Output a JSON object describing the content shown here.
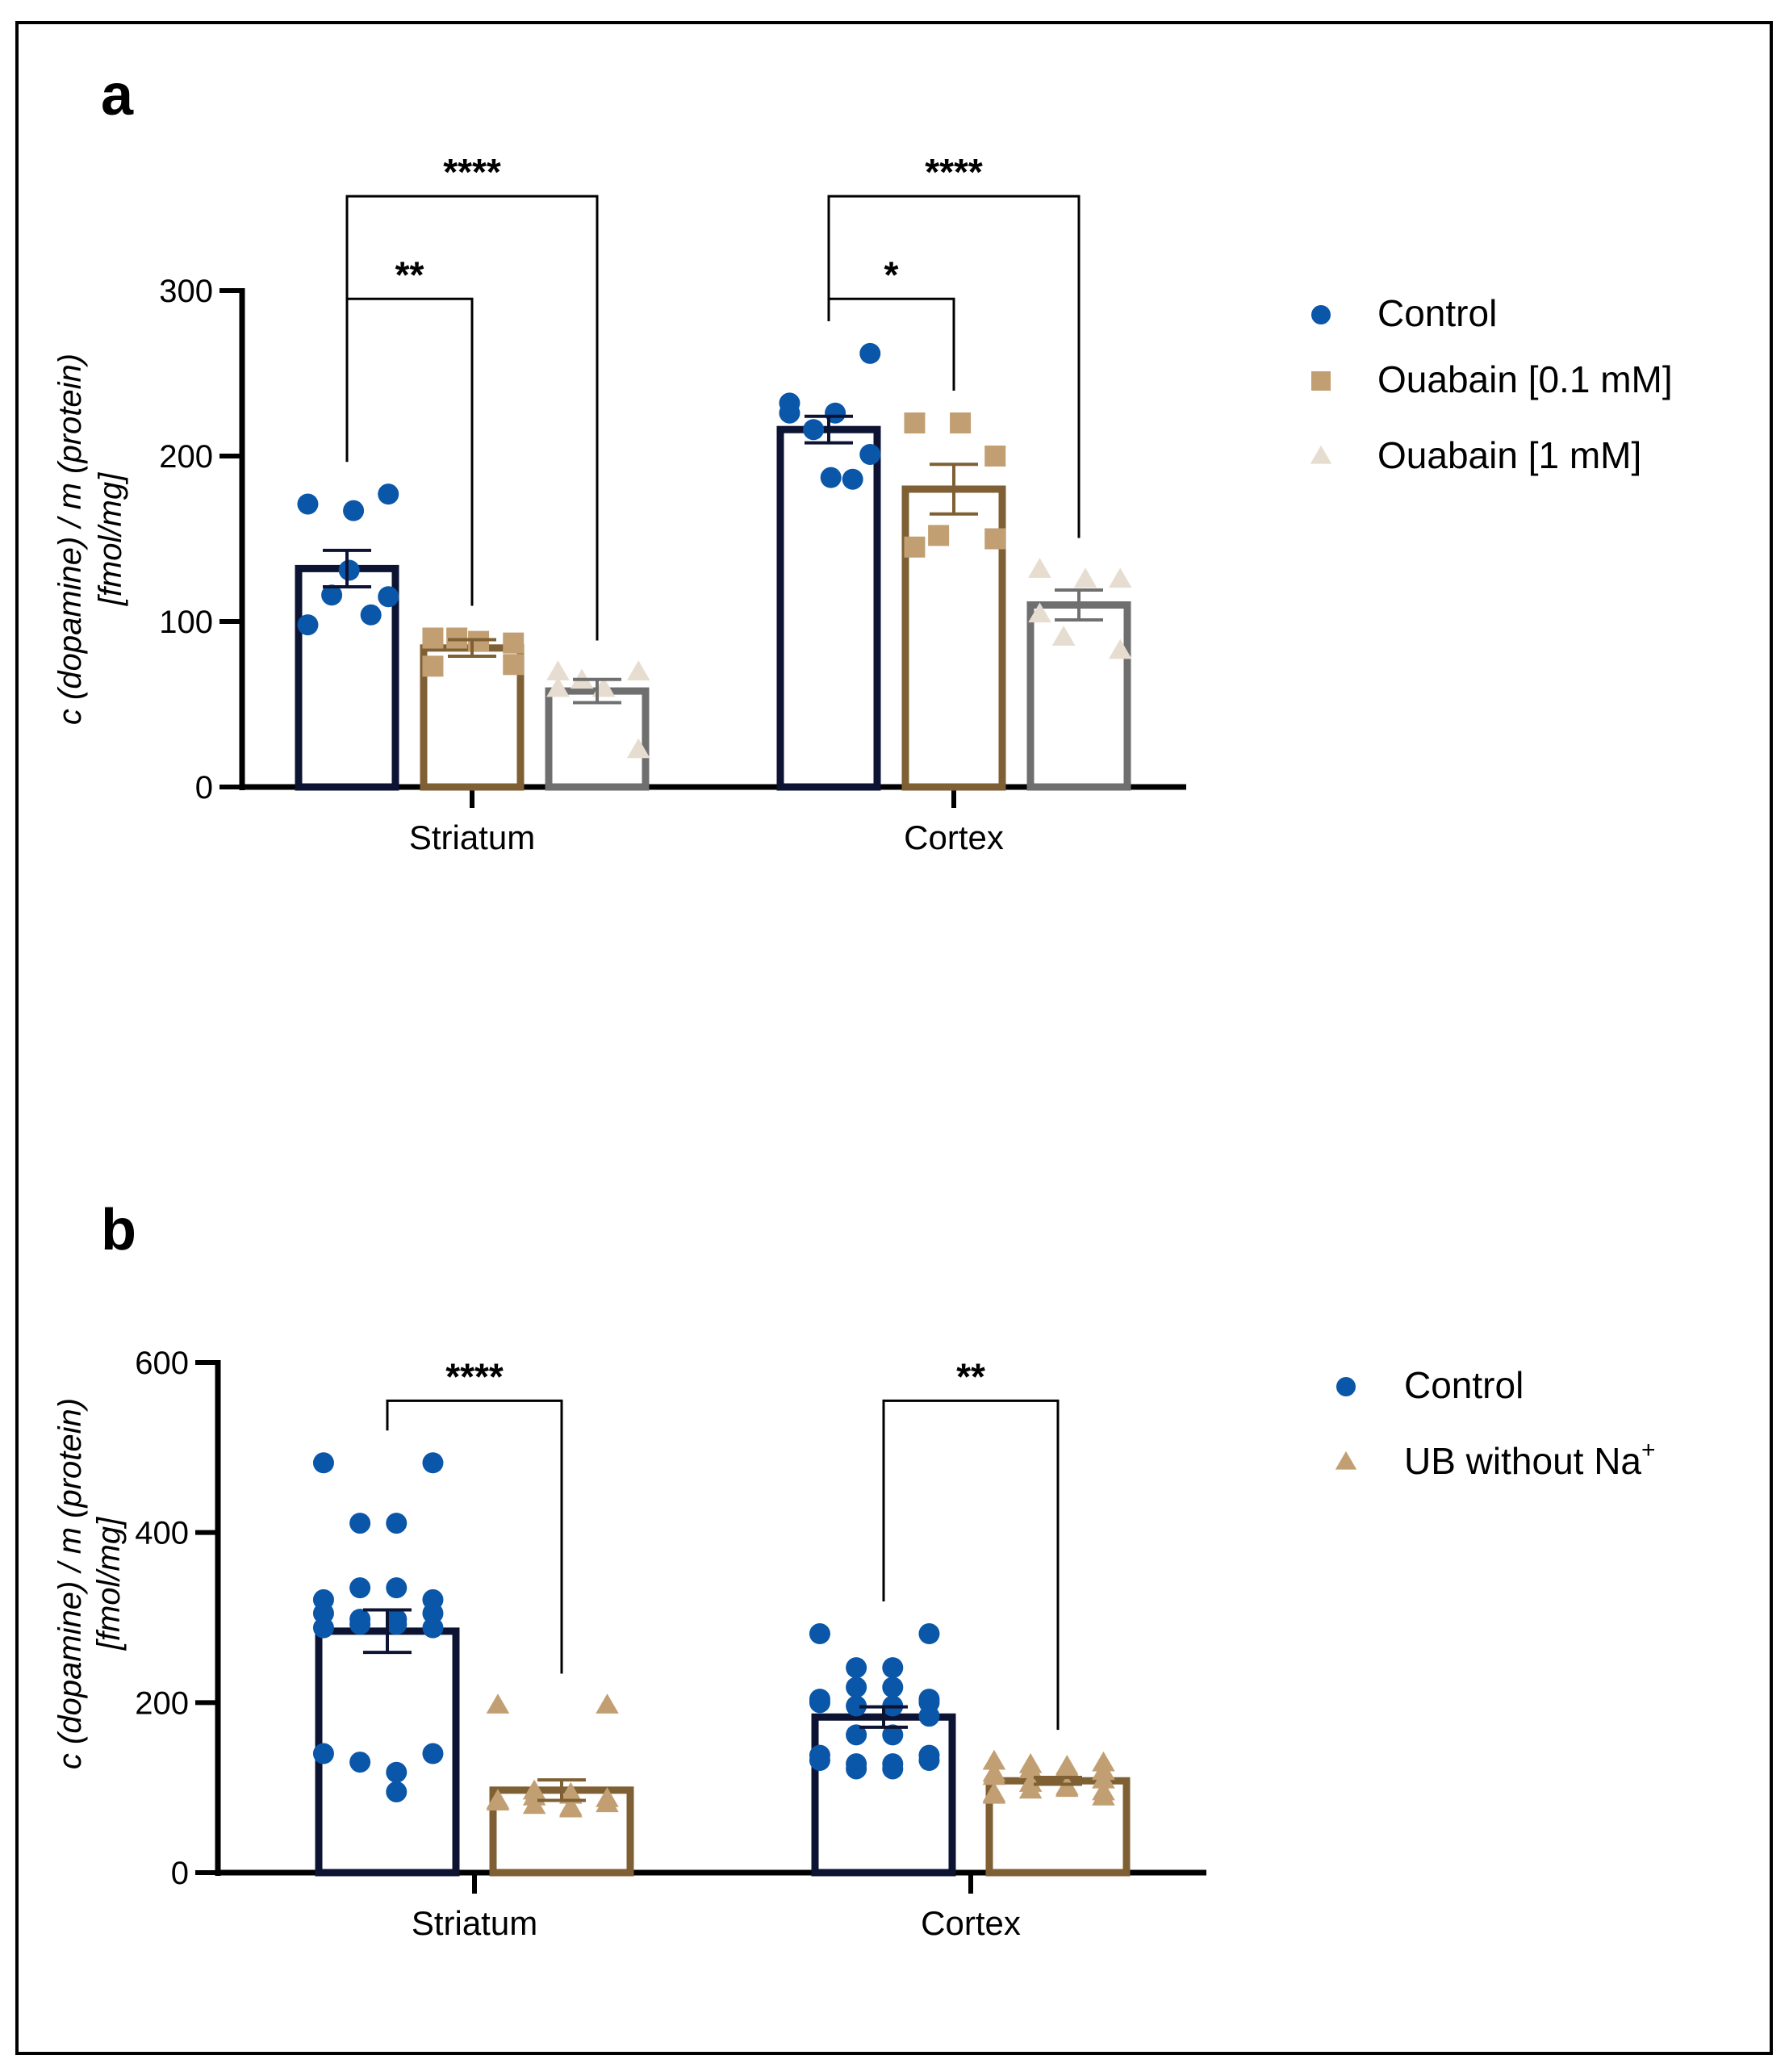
{
  "colors": {
    "control_bar": "#0d1433",
    "control_point": "#0a56a8",
    "ouabain_low": "#c29f72",
    "ouabain_low_bar": "#7f6034",
    "ouabain_high": "#e6ddd0",
    "ouabain_high_bar": "#6f6f6f",
    "ub_point": "#c29f72",
    "ub_bar": "#7f6034"
  },
  "chart_data": [
    {
      "panel": "a",
      "type": "bar",
      "categories": [
        "Striatum",
        "Cortex"
      ],
      "ylabel_line1": "c (dopamine) / m (protein)",
      "ylabel_line2": "[fmol/mg]",
      "ylim": [
        0,
        300
      ],
      "yticks": [
        "0",
        "100",
        "200",
        "300"
      ],
      "legend_position": "right",
      "series": [
        {
          "name": "Control",
          "marker": "circle",
          "values": [
            132,
            216
          ],
          "sem": [
            11,
            8
          ],
          "points": [
            [
              171,
              167,
              177,
              98,
              116,
              115,
              131,
              104
            ],
            [
              232,
              226,
              262,
              226,
              216,
              201,
              187,
              186
            ]
          ]
        },
        {
          "name": "Ouabain [0.1 mM]",
          "marker": "square",
          "values": [
            84,
            180
          ],
          "sem": [
            5,
            15
          ],
          "points": [
            [
              90,
              88,
              74,
              73,
              90,
              87
            ],
            [
              220,
              220,
              200,
              145,
              152,
              150
            ]
          ]
        },
        {
          "name": "Ouabain [1 mM]",
          "marker": "triangle",
          "values": [
            58,
            110
          ],
          "sem": [
            7,
            9
          ],
          "points": [
            [
              69,
              59,
              69,
              59,
              64,
              22
            ],
            [
              131,
              125,
              125,
              104,
              90,
              82
            ]
          ]
        }
      ],
      "significance": [
        {
          "group": 0,
          "from": 0,
          "to": 1,
          "label": "**",
          "y": 295
        },
        {
          "group": 0,
          "from": 0,
          "to": 2,
          "label": "****",
          "y": 357
        },
        {
          "group": 1,
          "from": 0,
          "to": 1,
          "label": "*",
          "y": 295
        },
        {
          "group": 1,
          "from": 0,
          "to": 2,
          "label": "****",
          "y": 357
        }
      ]
    },
    {
      "panel": "b",
      "type": "bar",
      "categories": [
        "Striatum",
        "Cortex"
      ],
      "ylabel_line1": "c (dopamine) / m (protein)",
      "ylabel_line2": "[fmol/mg]",
      "ylim": [
        0,
        600
      ],
      "yticks": [
        "0",
        "200",
        "400",
        "600"
      ],
      "legend_position": "right",
      "series": [
        {
          "name": "Control",
          "marker": "circle",
          "values": [
            284,
            183
          ],
          "sem": [
            25,
            12
          ],
          "points": [
            [
              482,
              482,
              411,
              411,
              335,
              335,
              321,
              321,
              305,
              305,
              298,
              298,
              292,
              292,
              288,
              288,
              140,
              140,
              130,
              118,
              95
            ],
            [
              281,
              281,
              241,
              241,
              218,
              218,
              204,
              204,
              200,
              200,
              196,
              196,
              162,
              162,
              138,
              138,
              132,
              132,
              128,
              128,
              122,
              122,
              184
            ]
          ]
        },
        {
          "name": "UB without Na+",
          "name_base": "UB without Na",
          "name_sup": "+",
          "marker": "triangle",
          "values": [
            97,
            108
          ],
          "sem": [
            12,
            4
          ],
          "points": [
            [
              196,
              196,
              95,
              92,
              90,
              88,
              86,
              84,
              82,
              80,
              78,
              76,
              74
            ],
            [
              130,
              128,
              126,
              124,
              122,
              120,
              118,
              116,
              112,
              108,
              104,
              100,
              98,
              96,
              94,
              92,
              90,
              88
            ]
          ]
        }
      ],
      "significance": [
        {
          "group": 0,
          "from": 0,
          "to": 1,
          "label": "****",
          "y": 555
        },
        {
          "group": 1,
          "from": 0,
          "to": 1,
          "label": "**",
          "y": 555
        }
      ]
    }
  ]
}
